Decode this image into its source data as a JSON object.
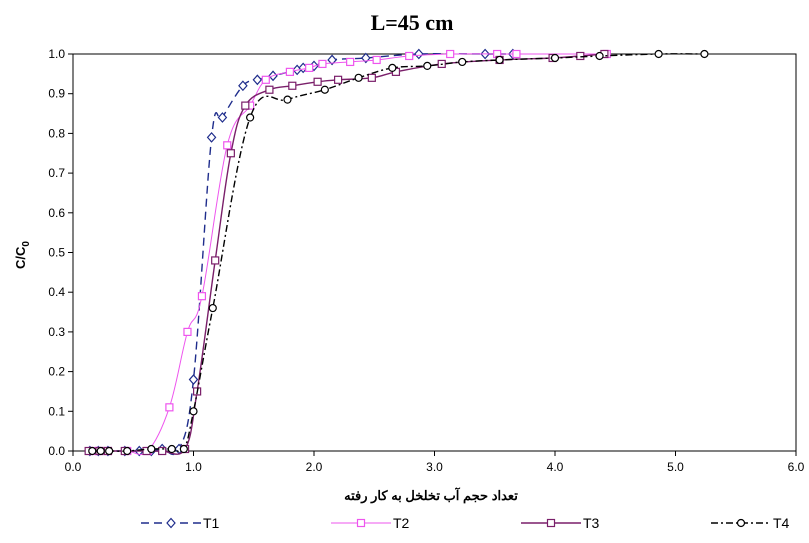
{
  "chart_data": {
    "type": "line",
    "title": "L=45 cm",
    "xlabel": "تعداد حجم آب تخلخل به کار رفته",
    "ylabel_main": "C/C",
    "ylabel_sub": "0",
    "xlim": [
      0,
      6
    ],
    "ylim": [
      0,
      1
    ],
    "x_ticks": [
      0,
      1,
      2,
      3,
      4,
      5,
      6
    ],
    "x_tick_labels": [
      "0.0",
      "1.0",
      "2.0",
      "3.0",
      "4.0",
      "5.0",
      "6.0"
    ],
    "y_ticks": [
      0,
      0.1,
      0.2,
      0.3,
      0.4,
      0.5,
      0.6,
      0.7,
      0.8,
      0.9,
      1.0
    ],
    "y_tick_labels": [
      "0.0",
      "0.1",
      "0.2",
      "0.3",
      "0.4",
      "0.5",
      "0.6",
      "0.7",
      "0.8",
      "0.9",
      "1.0"
    ],
    "grid": false,
    "legend_position": "bottom",
    "series": [
      {
        "name": "T1",
        "color": "#1f2d8c",
        "dash": "8,5",
        "marker": "diamond",
        "x": [
          0.14,
          0.21,
          0.29,
          0.43,
          0.55,
          0.65,
          0.74,
          0.88,
          1.0,
          1.15,
          1.24,
          1.41,
          1.53,
          1.66,
          1.86,
          1.91,
          2.0,
          2.15,
          2.43,
          2.87,
          3.42,
          3.65
        ],
        "y": [
          0.0,
          0.0,
          0.0,
          0.0,
          0.0,
          0.0,
          0.005,
          0.005,
          0.18,
          0.79,
          0.84,
          0.92,
          0.935,
          0.945,
          0.96,
          0.965,
          0.97,
          0.985,
          0.99,
          1.0,
          1.0,
          1.0
        ]
      },
      {
        "name": "T2",
        "color": "#ee55ee",
        "dash": "",
        "marker": "square",
        "x": [
          0.16,
          0.22,
          0.29,
          0.45,
          0.62,
          0.8,
          0.95,
          1.07,
          1.28,
          1.47,
          1.6,
          1.8,
          1.96,
          2.07,
          2.3,
          2.52,
          2.79,
          3.13,
          3.52,
          3.68,
          4.43
        ],
        "y": [
          0.0,
          0.0,
          0.0,
          0.0,
          0.0,
          0.11,
          0.3,
          0.39,
          0.77,
          0.87,
          0.935,
          0.955,
          0.965,
          0.975,
          0.98,
          0.985,
          0.995,
          1.0,
          1.0,
          1.0,
          1.0
        ]
      },
      {
        "name": "T3",
        "color": "#7a1f6a",
        "dash": "",
        "marker": "square",
        "x": [
          0.13,
          0.22,
          0.29,
          0.43,
          0.61,
          0.74,
          0.93,
          1.03,
          1.18,
          1.31,
          1.43,
          1.63,
          1.82,
          2.03,
          2.2,
          2.48,
          2.68,
          3.06,
          3.54,
          3.98,
          4.21,
          4.41
        ],
        "y": [
          0.0,
          0.0,
          0.0,
          0.0,
          0.0,
          0.0,
          0.005,
          0.15,
          0.48,
          0.75,
          0.87,
          0.91,
          0.92,
          0.93,
          0.935,
          0.94,
          0.955,
          0.975,
          0.985,
          0.99,
          0.995,
          1.0
        ]
      },
      {
        "name": "T4",
        "color": "#000000",
        "dash": "7,3,2,3",
        "marker": "circle",
        "x": [
          0.16,
          0.23,
          0.3,
          0.45,
          0.65,
          0.82,
          0.92,
          1.0,
          1.16,
          1.47,
          1.78,
          2.09,
          2.37,
          2.65,
          2.94,
          3.23,
          3.54,
          4.0,
          4.37,
          4.86,
          5.24
        ],
        "y": [
          0.0,
          0.0,
          0.0,
          0.0,
          0.005,
          0.005,
          0.005,
          0.1,
          0.36,
          0.84,
          0.885,
          0.91,
          0.94,
          0.965,
          0.97,
          0.98,
          0.985,
          0.99,
          0.995,
          1.0,
          1.0
        ]
      }
    ]
  }
}
